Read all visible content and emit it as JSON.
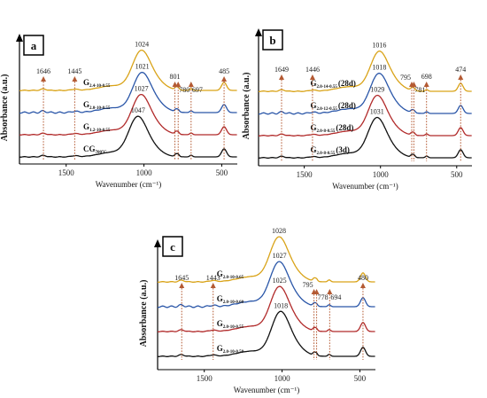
{
  "colors": {
    "gold": "#d9a318",
    "blue": "#2a56a8",
    "red": "#b12a2a",
    "black": "#111111",
    "marker": "#b45a33",
    "guide": "#b45a33"
  },
  "chart_data": [
    {
      "type": "line",
      "panel_label": "a",
      "xlabel": "Wavenumber (cm⁻¹)",
      "ylabel": "Absorbance (a.u.)",
      "xlim": [
        1800,
        400
      ],
      "xticks": [
        1500,
        1000,
        500
      ],
      "series": [
        {
          "name_main": "G",
          "name_sub": "2.4-10-0.55",
          "label_x": 1390,
          "color": "gold",
          "offset": 3,
          "peak_main": 1024,
          "peak_low": 485
        },
        {
          "name_main": "G",
          "name_sub": "2.0-10-0.55",
          "label_x": 1390,
          "color": "blue",
          "offset": 2,
          "peak_main": 1021,
          "peak_low": 485
        },
        {
          "name_main": "G",
          "name_sub": "1.2-10-0.55",
          "label_x": 1390,
          "color": "red",
          "offset": 1,
          "peak_main": 1027,
          "peak_low": 485
        },
        {
          "name_main": "CG",
          "name_sub": "700°C",
          "label_x": 1390,
          "color": "black",
          "offset": 0,
          "peak_main": 1047,
          "peak_low": 485
        }
      ],
      "annotations": [
        {
          "label": "1646",
          "x": 1646,
          "ta": "middle"
        },
        {
          "label": "1445",
          "x": 1445,
          "ta": "middle"
        },
        {
          "label": "801",
          "x": 801,
          "ta": "middle"
        },
        {
          "label": "780",
          "x": 780,
          "ta": "start"
        },
        {
          "label": "697",
          "x": 697,
          "ta": "start"
        },
        {
          "label": "485",
          "x": 485,
          "ta": "middle"
        }
      ]
    },
    {
      "type": "line",
      "panel_label": "b",
      "xlabel": "Wavenumber (cm⁻¹)",
      "ylabel": "Absorbance (a.u.)",
      "xlim": [
        1800,
        400
      ],
      "xticks": [
        1500,
        1000,
        500
      ],
      "series": [
        {
          "name_main": "G",
          "name_sub": "2.0-14-0.55",
          "name_tail": "(28d)",
          "label_x": 1460,
          "color": "gold",
          "offset": 3,
          "peak_main": 1016,
          "peak_low": 474
        },
        {
          "name_main": "G",
          "name_sub": "2.0-12-0.55",
          "name_tail": "(28d)",
          "label_x": 1460,
          "color": "blue",
          "offset": 2,
          "peak_main": 1018,
          "peak_low": 474
        },
        {
          "name_main": "G",
          "name_sub": "2.0-8-0.55",
          "name_tail": "(28d)",
          "label_x": 1460,
          "color": "red",
          "offset": 1,
          "peak_main": 1029,
          "peak_low": 474
        },
        {
          "name_main": "G",
          "name_sub": "2.0-8-0.55",
          "name_tail": "(3d)",
          "label_x": 1460,
          "color": "black",
          "offset": 0,
          "peak_main": 1031,
          "peak_low": 474
        }
      ],
      "annotations": [
        {
          "label": "1649",
          "x": 1649,
          "ta": "middle"
        },
        {
          "label": "1446",
          "x": 1446,
          "ta": "middle"
        },
        {
          "label": "795",
          "x": 795,
          "ta": "end"
        },
        {
          "label": "781",
          "x": 781,
          "ta": "start"
        },
        {
          "label": "698",
          "x": 698,
          "ta": "middle"
        },
        {
          "label": "474",
          "x": 474,
          "ta": "middle"
        }
      ]
    },
    {
      "type": "line",
      "panel_label": "c",
      "xlabel": "Wavenumber (cm⁻¹)",
      "ylabel": "Absorbance (a.u.)",
      "xlim": [
        1800,
        400
      ],
      "xticks": [
        1500,
        1000,
        500
      ],
      "series": [
        {
          "name_main": "G",
          "name_sub": "2.0-10-0.65",
          "label_x": 1420,
          "color": "gold",
          "offset": 3,
          "peak_main": 1028,
          "peak_low": 480
        },
        {
          "name_main": "G",
          "name_sub": "2.0-10-0.60",
          "label_x": 1420,
          "color": "blue",
          "offset": 2,
          "peak_main": 1027,
          "peak_low": 480
        },
        {
          "name_main": "G",
          "name_sub": "2.0-10-0.55",
          "label_x": 1420,
          "color": "red",
          "offset": 1,
          "peak_main": 1025,
          "peak_low": 480
        },
        {
          "name_main": "G",
          "name_sub": "2.0-10-0.50",
          "label_x": 1420,
          "color": "black",
          "offset": 0,
          "peak_main": 1018,
          "peak_low": 480
        }
      ],
      "annotations": [
        {
          "label": "1645",
          "x": 1645,
          "ta": "middle"
        },
        {
          "label": "1443",
          "x": 1443,
          "ta": "middle"
        },
        {
          "label": "795",
          "x": 795,
          "ta": "end"
        },
        {
          "label": "778",
          "x": 778,
          "ta": "start"
        },
        {
          "label": "694",
          "x": 694,
          "ta": "start"
        },
        {
          "label": "480",
          "x": 480,
          "ta": "middle"
        }
      ]
    }
  ]
}
